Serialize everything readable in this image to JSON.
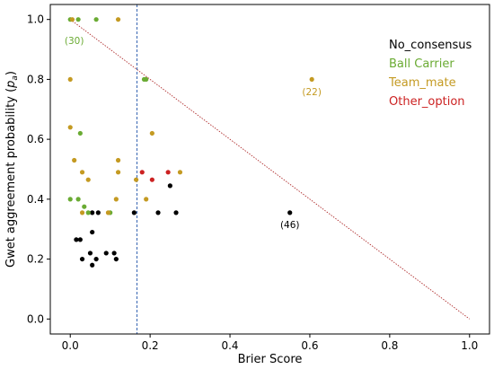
{
  "chart_data": {
    "type": "scatter",
    "xlabel": "Brier Score",
    "ylabel_prefix": "Gwet aggreement probability (",
    "ylabel_symbol": "p",
    "ylabel_sub": "a",
    "ylabel_suffix": ")",
    "xlim": [
      -0.05,
      1.05
    ],
    "ylim": [
      -0.05,
      1.05
    ],
    "xticks": [
      0.0,
      0.2,
      0.4,
      0.6,
      0.8,
      1.0
    ],
    "yticks": [
      0.0,
      0.2,
      0.4,
      0.6,
      0.8,
      1.0
    ],
    "xtick_labels": [
      "0.0",
      "0.2",
      "0.4",
      "0.6",
      "0.8",
      "1.0"
    ],
    "ytick_labels": [
      "0.0",
      "0.2",
      "0.4",
      "0.6",
      "0.8",
      "1.0"
    ],
    "grid": false,
    "legend_position": "top-right",
    "series": [
      {
        "name": "No_consensus",
        "color": "#000000",
        "points": [
          [
            0.015,
            0.265
          ],
          [
            0.025,
            0.265
          ],
          [
            0.03,
            0.2
          ],
          [
            0.05,
            0.22
          ],
          [
            0.055,
            0.29
          ],
          [
            0.055,
            0.18
          ],
          [
            0.065,
            0.2
          ],
          [
            0.09,
            0.22
          ],
          [
            0.11,
            0.22
          ],
          [
            0.115,
            0.2
          ],
          [
            0.055,
            0.355
          ],
          [
            0.07,
            0.355
          ],
          [
            0.16,
            0.355
          ],
          [
            0.22,
            0.355
          ],
          [
            0.265,
            0.355
          ],
          [
            0.25,
            0.445
          ],
          [
            0.55,
            0.355
          ]
        ]
      },
      {
        "name": "Ball Carrier",
        "color": "#6aab33",
        "points": [
          [
            0.0,
            1.0
          ],
          [
            0.02,
            1.0
          ],
          [
            0.065,
            1.0
          ],
          [
            0.0,
            0.4
          ],
          [
            0.02,
            0.4
          ],
          [
            0.025,
            0.62
          ],
          [
            0.035,
            0.375
          ],
          [
            0.045,
            0.355
          ],
          [
            0.1,
            0.355
          ],
          [
            0.185,
            0.8
          ],
          [
            0.19,
            0.8
          ]
        ]
      },
      {
        "name": "Team_mate",
        "color": "#c49a22",
        "points": [
          [
            0.005,
            1.0
          ],
          [
            0.12,
            1.0
          ],
          [
            0.0,
            0.8
          ],
          [
            0.0,
            0.64
          ],
          [
            0.01,
            0.53
          ],
          [
            0.03,
            0.49
          ],
          [
            0.045,
            0.465
          ],
          [
            0.03,
            0.355
          ],
          [
            0.095,
            0.355
          ],
          [
            0.115,
            0.4
          ],
          [
            0.12,
            0.53
          ],
          [
            0.12,
            0.49
          ],
          [
            0.165,
            0.465
          ],
          [
            0.19,
            0.4
          ],
          [
            0.205,
            0.62
          ],
          [
            0.275,
            0.49
          ],
          [
            0.605,
            0.8
          ]
        ]
      },
      {
        "name": "Other_option",
        "color": "#cc2222",
        "points": [
          [
            0.18,
            0.49
          ],
          [
            0.205,
            0.465
          ],
          [
            0.245,
            0.49
          ]
        ]
      }
    ],
    "reference_lines": [
      {
        "type": "diagonal",
        "from": [
          0.0,
          1.0
        ],
        "to": [
          1.0,
          0.0
        ],
        "color": "#b03030",
        "style": "dotted"
      },
      {
        "type": "vertical",
        "x": 0.167,
        "color": "#2255aa",
        "style": "dashed"
      }
    ],
    "annotations": [
      {
        "text": "(30)",
        "x": 0.01,
        "y": 0.93,
        "color": "#6aab33"
      },
      {
        "text": "(22)",
        "x": 0.605,
        "y": 0.76,
        "color": "#c49a22"
      },
      {
        "text": "(46)",
        "x": 0.55,
        "y": 0.315,
        "color": "#000000"
      }
    ]
  }
}
